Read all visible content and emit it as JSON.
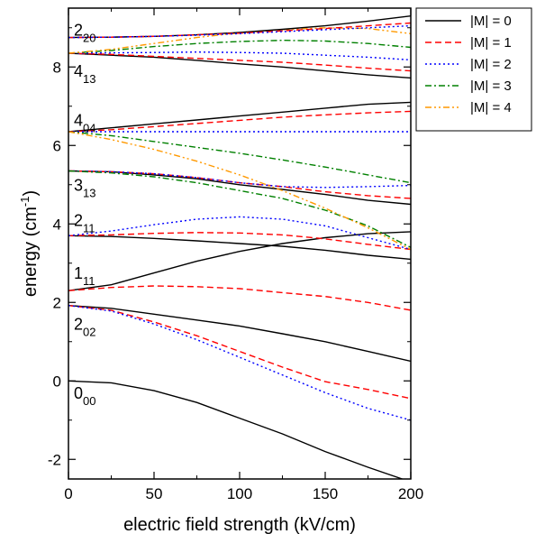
{
  "chart_data": {
    "type": "line",
    "title": "",
    "xlabel": "electric field strength (kV/cm)",
    "ylabel_main": "energy (cm",
    "ylabel_sup": "-1",
    "ylabel_end": ")",
    "xlim": [
      0,
      200
    ],
    "ylim": [
      -2.5,
      9.5
    ],
    "x_ticks": [
      0,
      50,
      100,
      150,
      200
    ],
    "y_ticks": [
      -2,
      0,
      2,
      4,
      6,
      8
    ],
    "grid": false,
    "legend_position": "top-right-outside",
    "legend": [
      {
        "label": "|M| = 0",
        "color": "#000000",
        "dash": "solid"
      },
      {
        "label": "|M| = 1",
        "color": "#ff0000",
        "dash": "dashed"
      },
      {
        "label": "|M| = 2",
        "color": "#0000ff",
        "dash": "dotted"
      },
      {
        "label": "|M| = 3",
        "color": "#008000",
        "dash": "dashdot"
      },
      {
        "label": "|M| = 4",
        "color": "#ff9900",
        "dash": "dashdotdot"
      }
    ],
    "state_labels": [
      {
        "main": "2",
        "sub": "20",
        "y": 8.8
      },
      {
        "main": "4",
        "sub": "13",
        "y": 7.75
      },
      {
        "main": "4",
        "sub": "04",
        "y": 6.5
      },
      {
        "main": "3",
        "sub": "13",
        "y": 4.85
      },
      {
        "main": "2",
        "sub": "11",
        "y": 3.95
      },
      {
        "main": "1",
        "sub": "11",
        "y": 2.6
      },
      {
        "main": "2",
        "sub": "02",
        "y": 1.3
      },
      {
        "main": "0",
        "sub": "00",
        "y": -0.45
      }
    ],
    "series": [
      {
        "group": "0_00",
        "M": 0,
        "x": [
          0,
          25,
          50,
          75,
          100,
          125,
          150,
          175,
          195
        ],
        "y": [
          0,
          -0.05,
          -0.25,
          -0.55,
          -0.95,
          -1.35,
          -1.8,
          -2.2,
          -2.5
        ]
      },
      {
        "group": "2_02",
        "M": 0,
        "x": [
          0,
          25,
          50,
          75,
          100,
          125,
          150,
          175,
          200
        ],
        "y": [
          1.92,
          1.85,
          1.7,
          1.55,
          1.4,
          1.2,
          1.0,
          0.75,
          0.5
        ]
      },
      {
        "group": "2_02",
        "M": 1,
        "x": [
          0,
          25,
          50,
          75,
          100,
          125,
          150,
          175,
          200
        ],
        "y": [
          1.92,
          1.8,
          1.5,
          1.15,
          0.75,
          0.35,
          -0.02,
          -0.22,
          -0.45
        ]
      },
      {
        "group": "2_02",
        "M": 2,
        "x": [
          0,
          25,
          50,
          75,
          100,
          125,
          150,
          175,
          200
        ],
        "y": [
          1.92,
          1.78,
          1.45,
          1.05,
          0.6,
          0.15,
          -0.3,
          -0.7,
          -1.0
        ]
      },
      {
        "group": "1_11",
        "M": 0,
        "x": [
          0,
          25,
          50,
          75,
          100,
          125,
          150,
          175,
          200
        ],
        "y": [
          2.3,
          2.45,
          2.75,
          3.05,
          3.3,
          3.5,
          3.65,
          3.75,
          3.8
        ]
      },
      {
        "group": "1_11",
        "M": 1,
        "x": [
          0,
          25,
          50,
          75,
          100,
          125,
          150,
          175,
          200
        ],
        "y": [
          2.3,
          2.38,
          2.42,
          2.4,
          2.35,
          2.25,
          2.15,
          2.0,
          1.8
        ]
      },
      {
        "group": "2_11",
        "M": 0,
        "x": [
          0,
          25,
          50,
          75,
          100,
          125,
          150,
          175,
          200
        ],
        "y": [
          3.7,
          3.68,
          3.63,
          3.57,
          3.5,
          3.43,
          3.33,
          3.2,
          3.1
        ]
      },
      {
        "group": "2_11",
        "M": 1,
        "x": [
          0,
          25,
          50,
          75,
          100,
          125,
          150,
          175,
          200
        ],
        "y": [
          3.7,
          3.72,
          3.76,
          3.78,
          3.77,
          3.72,
          3.62,
          3.48,
          3.35
        ]
      },
      {
        "group": "2_11",
        "M": 2,
        "x": [
          0,
          25,
          50,
          75,
          100,
          125,
          150,
          175,
          200
        ],
        "y": [
          3.7,
          3.82,
          3.98,
          4.12,
          4.18,
          4.12,
          3.95,
          3.65,
          3.35
        ]
      },
      {
        "group": "3_13",
        "M": 0,
        "x": [
          0,
          25,
          50,
          75,
          100,
          125,
          150,
          175,
          200
        ],
        "y": [
          5.35,
          5.33,
          5.25,
          5.15,
          5.0,
          4.88,
          4.75,
          4.6,
          4.5
        ]
      },
      {
        "group": "3_13",
        "M": 1,
        "x": [
          0,
          25,
          50,
          75,
          100,
          125,
          150,
          175,
          200
        ],
        "y": [
          5.35,
          5.33,
          5.28,
          5.18,
          5.05,
          4.95,
          4.82,
          4.72,
          4.65
        ]
      },
      {
        "group": "3_13",
        "M": 2,
        "x": [
          0,
          25,
          50,
          75,
          100,
          125,
          150,
          175,
          200
        ],
        "y": [
          5.35,
          5.33,
          5.28,
          5.18,
          5.05,
          4.95,
          4.93,
          4.95,
          4.98
        ]
      },
      {
        "group": "3_13",
        "M": 3,
        "x": [
          0,
          25,
          50,
          75,
          100,
          125,
          150,
          175,
          200
        ],
        "y": [
          5.35,
          5.3,
          5.2,
          5.05,
          4.85,
          4.65,
          4.35,
          3.95,
          3.4
        ]
      },
      {
        "group": "4_04",
        "M": 0,
        "x": [
          0,
          25,
          50,
          75,
          100,
          125,
          150,
          175,
          200
        ],
        "y": [
          6.35,
          6.45,
          6.55,
          6.65,
          6.75,
          6.85,
          6.95,
          7.05,
          7.1
        ]
      },
      {
        "group": "4_04",
        "M": 1,
        "x": [
          0,
          25,
          50,
          75,
          100,
          125,
          150,
          175,
          200
        ],
        "y": [
          6.35,
          6.4,
          6.48,
          6.56,
          6.64,
          6.72,
          6.78,
          6.83,
          6.87
        ]
      },
      {
        "group": "4_04",
        "M": 2,
        "x": [
          0,
          25,
          50,
          75,
          100,
          125,
          150,
          175,
          200
        ],
        "y": [
          6.35,
          6.35,
          6.35,
          6.35,
          6.35,
          6.35,
          6.35,
          6.35,
          6.35
        ]
      },
      {
        "group": "4_04",
        "M": 3,
        "x": [
          0,
          25,
          50,
          75,
          100,
          125,
          150,
          175,
          200
        ],
        "y": [
          6.35,
          6.25,
          6.1,
          5.95,
          5.8,
          5.63,
          5.45,
          5.25,
          5.05
        ]
      },
      {
        "group": "4_04",
        "M": 4,
        "x": [
          0,
          25,
          50,
          75,
          100,
          125,
          150,
          175,
          200
        ],
        "y": [
          6.35,
          6.15,
          5.9,
          5.6,
          5.25,
          4.85,
          4.4,
          3.9,
          3.35
        ]
      },
      {
        "group": "4_13",
        "M": 0,
        "x": [
          0,
          25,
          50,
          75,
          100,
          125,
          150,
          175,
          200
        ],
        "y": [
          8.35,
          8.3,
          8.25,
          8.17,
          8.08,
          8.0,
          7.9,
          7.8,
          7.72
        ]
      },
      {
        "group": "4_13",
        "M": 1,
        "x": [
          0,
          25,
          50,
          75,
          100,
          125,
          150,
          175,
          200
        ],
        "y": [
          8.35,
          8.32,
          8.27,
          8.22,
          8.17,
          8.12,
          8.05,
          7.97,
          7.9
        ]
      },
      {
        "group": "4_13",
        "M": 2,
        "x": [
          0,
          25,
          50,
          75,
          100,
          125,
          150,
          175,
          200
        ],
        "y": [
          8.35,
          8.36,
          8.37,
          8.38,
          8.37,
          8.35,
          8.3,
          8.25,
          8.18
        ]
      },
      {
        "group": "4_13",
        "M": 3,
        "x": [
          0,
          25,
          50,
          75,
          100,
          125,
          150,
          175,
          200
        ],
        "y": [
          8.35,
          8.42,
          8.52,
          8.6,
          8.65,
          8.68,
          8.66,
          8.6,
          8.5
        ]
      },
      {
        "group": "4_13",
        "M": 4,
        "x": [
          0,
          25,
          50,
          75,
          100,
          125,
          150,
          175,
          200
        ],
        "y": [
          8.35,
          8.45,
          8.6,
          8.75,
          8.87,
          8.95,
          9.0,
          8.98,
          8.85
        ]
      },
      {
        "group": "2_20",
        "M": 0,
        "x": [
          0,
          25,
          50,
          75,
          100,
          125,
          150,
          175,
          200
        ],
        "y": [
          8.75,
          8.76,
          8.78,
          8.82,
          8.88,
          8.96,
          9.05,
          9.17,
          9.3
        ]
      },
      {
        "group": "2_20",
        "M": 1,
        "x": [
          0,
          25,
          50,
          75,
          100,
          125,
          150,
          175,
          200
        ],
        "y": [
          8.75,
          8.76,
          8.78,
          8.82,
          8.86,
          8.92,
          8.98,
          9.05,
          9.12
        ]
      },
      {
        "group": "2_20",
        "M": 2,
        "x": [
          0,
          25,
          50,
          75,
          100,
          125,
          150,
          175,
          200
        ],
        "y": [
          8.75,
          8.76,
          8.78,
          8.81,
          8.85,
          8.9,
          8.95,
          9.0,
          9.05
        ]
      }
    ]
  }
}
